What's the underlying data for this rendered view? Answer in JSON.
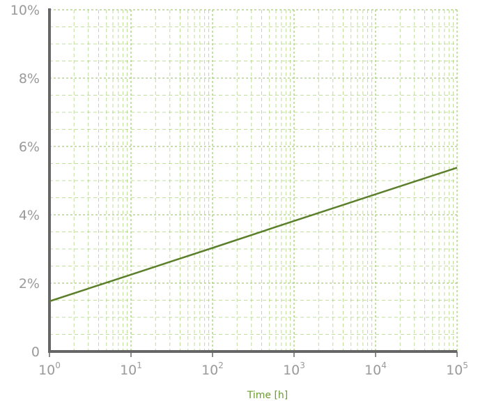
{
  "chart_data": {
    "type": "line",
    "title": "",
    "xlabel": "Time [h]",
    "ylabel": "",
    "x_scale": "log",
    "xlim": [
      1,
      100000
    ],
    "ylim": [
      0,
      10
    ],
    "x_ticks": [
      {
        "base": "10",
        "exp": "0"
      },
      {
        "base": "10",
        "exp": "1"
      },
      {
        "base": "10",
        "exp": "2"
      },
      {
        "base": "10",
        "exp": "3"
      },
      {
        "base": "10",
        "exp": "4"
      },
      {
        "base": "10",
        "exp": "5"
      }
    ],
    "y_ticks": [
      "0",
      "2%",
      "4%",
      "6%",
      "8%",
      "10%"
    ],
    "y_tick_values": [
      0,
      2,
      4,
      6,
      8,
      10
    ],
    "grid": true,
    "series": [
      {
        "x": [
          1,
          10,
          100,
          1000,
          10000,
          100000
        ],
        "y": [
          1.47,
          2.25,
          3.03,
          3.82,
          4.6,
          5.38
        ]
      }
    ]
  },
  "colors": {
    "line": "#5b7f2b",
    "grid": "#8bc34a",
    "axis": "#666666",
    "tick_label": "#9a9a9a",
    "xlabel": "#6a9a2f"
  }
}
